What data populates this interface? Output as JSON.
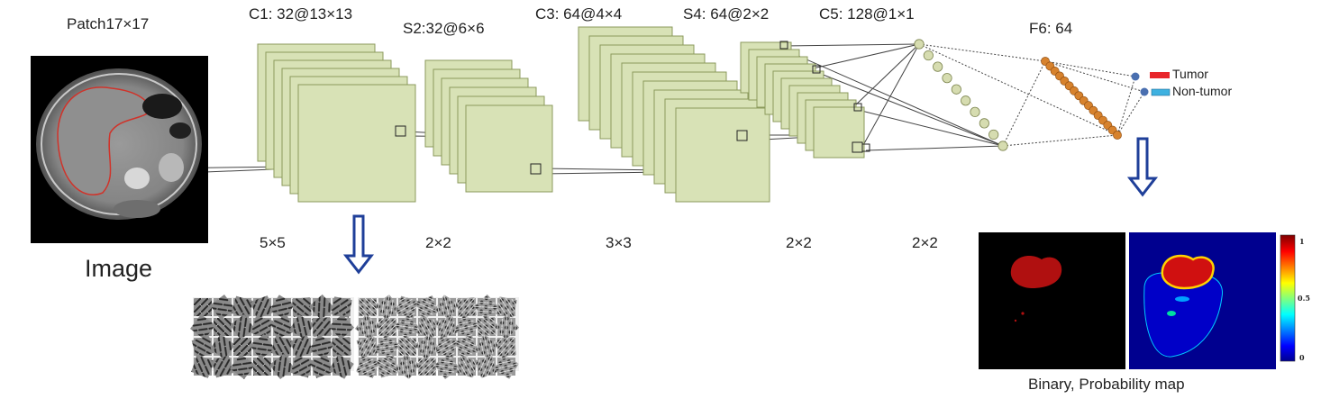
{
  "labels": {
    "patch": "Patch17×17",
    "image": "Image",
    "c1": "C1: 32@13×13",
    "s2": "S2:32@6×6",
    "c3": "C3: 64@4×4",
    "s4": "S4: 64@2×2",
    "c5": "C5: 128@1×1",
    "f6": "F6: 64",
    "k1": "5×5",
    "k2": "2×2",
    "k3": "3×3",
    "k4": "2×2",
    "k5": "2×2",
    "output_caption": "Binary, Probability map"
  },
  "outputs": [
    {
      "label": "Tumor",
      "color": "#e8262b"
    },
    {
      "label": "Non-tumor",
      "color": "#3eb1e0"
    }
  ],
  "colorbar": {
    "ticks": [
      "1",
      "0.5",
      "0"
    ]
  },
  "colors": {
    "feature_map_fill": "#d8e2b6",
    "feature_map_stroke": "#8b9a5c",
    "neuron_c5": "#d6dcb0",
    "neuron_f6": "#d7822d",
    "neuron_out": "#4a6fb0",
    "arrow": "#1f3f99"
  }
}
